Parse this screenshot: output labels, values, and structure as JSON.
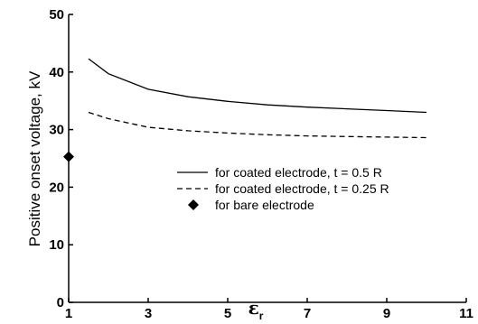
{
  "chart_data": {
    "type": "line",
    "xlabel": "ε",
    "xlabel_subscript": "r",
    "ylabel": "Positive onset voltage, kV",
    "xlim": [
      1,
      11
    ],
    "ylim": [
      0,
      50
    ],
    "xticks": [
      1,
      3,
      5,
      7,
      9,
      11
    ],
    "yticks": [
      0,
      10,
      20,
      30,
      40,
      50
    ],
    "grid": false,
    "legend_position": "center-right",
    "series": [
      {
        "name": "for coated electrode, t = 0.5 R",
        "style": "solid",
        "color": "#000000",
        "x": [
          1.5,
          2,
          3,
          4,
          5,
          6,
          7,
          8,
          9,
          10
        ],
        "y": [
          42.3,
          39.7,
          37.0,
          35.7,
          34.9,
          34.3,
          33.9,
          33.6,
          33.3,
          33.0
        ]
      },
      {
        "name": "for coated electrode, t = 0.25 R",
        "style": "dashed",
        "color": "#000000",
        "x": [
          1.5,
          2,
          3,
          4,
          5,
          6,
          7,
          8,
          9,
          10
        ],
        "y": [
          33.0,
          31.9,
          30.4,
          29.8,
          29.4,
          29.1,
          28.9,
          28.8,
          28.7,
          28.6
        ]
      },
      {
        "name": "for bare electrode",
        "style": "marker-diamond",
        "color": "#000000",
        "x": [
          1
        ],
        "y": [
          25.3
        ]
      }
    ]
  }
}
